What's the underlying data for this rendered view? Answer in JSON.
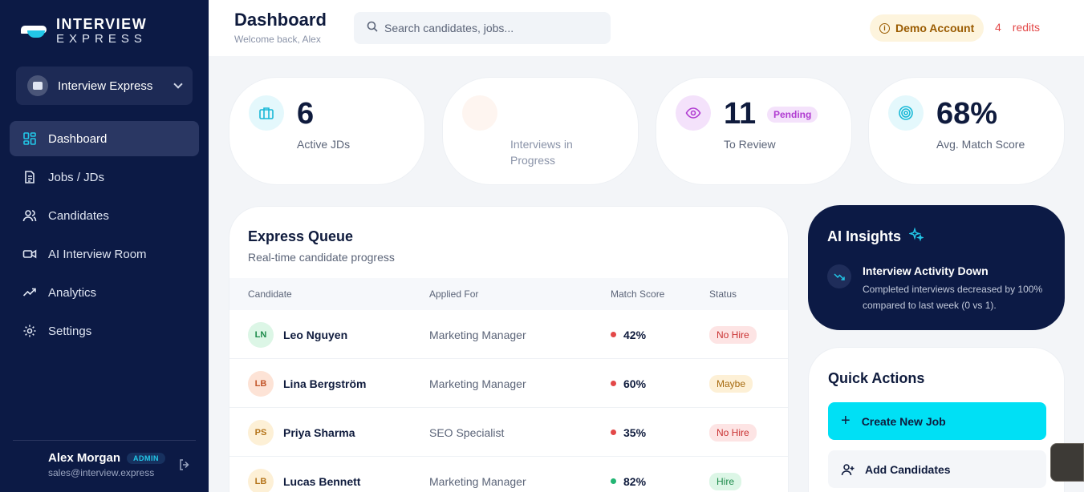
{
  "brand": {
    "line1": "INTERVIEW",
    "line2": "EXPRESS"
  },
  "workspace": {
    "name": "Interview Express"
  },
  "nav": [
    {
      "label": "Dashboard",
      "icon": "dashboard-icon",
      "active": true
    },
    {
      "label": "Jobs / JDs",
      "icon": "document-icon"
    },
    {
      "label": "Candidates",
      "icon": "users-icon"
    },
    {
      "label": "AI Interview Room",
      "icon": "video-icon"
    },
    {
      "label": "Analytics",
      "icon": "trend-icon"
    },
    {
      "label": "Settings",
      "icon": "gear-icon"
    }
  ],
  "user": {
    "name": "Alex Morgan",
    "role": "ADMIN",
    "email": "sales@interview.express"
  },
  "header": {
    "title": "Dashboard",
    "subtitle": "Welcome back, Alex",
    "search_placeholder": "Search candidates, jobs...",
    "demo_label": "Demo Account",
    "credits_prefix": "4",
    "credits_suffix": "redits"
  },
  "stats": [
    {
      "value": "6",
      "label": "Active JDs",
      "icon": "briefcase-icon",
      "color": "#17b8d6"
    },
    {
      "value": "",
      "label": "Interviews in Progress",
      "icon": "loading-icon",
      "color": "#f0a070"
    },
    {
      "value": "11",
      "label": "To Review",
      "badge": "Pending",
      "icon": "eye-icon",
      "color": "#b03bd1"
    },
    {
      "value": "68%",
      "label": "Avg. Match Score",
      "icon": "target-icon",
      "color": "#17b8d6"
    }
  ],
  "queue": {
    "title": "Express Queue",
    "subtitle": "Real-time candidate progress",
    "columns": [
      "Candidate",
      "Applied For",
      "Match Score",
      "Status"
    ],
    "rows": [
      {
        "initials": "LN",
        "name": "Leo Nguyen",
        "job": "Marketing Manager",
        "score": "42%",
        "status": "No Hire",
        "tone": "red",
        "avatar_bg": "#dcf6e6",
        "avatar_fg": "#1c8a4a"
      },
      {
        "initials": "LB",
        "name": "Lina Bergström",
        "job": "Marketing Manager",
        "score": "60%",
        "status": "Maybe",
        "tone": "amber",
        "avatar_bg": "#fde3d6",
        "avatar_fg": "#c2562a"
      },
      {
        "initials": "PS",
        "name": "Priya Sharma",
        "job": "SEO Specialist",
        "score": "35%",
        "status": "No Hire",
        "tone": "red",
        "avatar_bg": "#fdf0d6",
        "avatar_fg": "#b4741a"
      },
      {
        "initials": "LB",
        "name": "Lucas Bennett",
        "job": "Marketing Manager",
        "score": "82%",
        "status": "Hire",
        "tone": "green",
        "avatar_bg": "#fdf0d6",
        "avatar_fg": "#b4741a"
      }
    ]
  },
  "insights": {
    "title": "AI Insights",
    "headline": "Interview Activity Down",
    "body": "Completed interviews decreased by 100% compared to last week (0 vs 1)."
  },
  "quick_actions": {
    "title": "Quick Actions",
    "primary": "Create New Job",
    "secondary": "Add Candidates"
  },
  "colors": {
    "accent": "#00e0f5",
    "sidebar": "#0c1a45",
    "danger": "#e34848",
    "success": "#22b573"
  }
}
